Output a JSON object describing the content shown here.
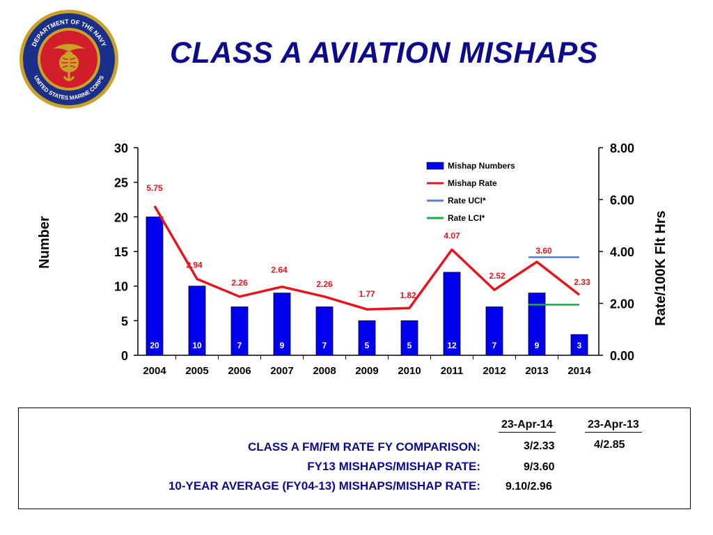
{
  "page": {
    "title": "CLASS A AVIATION MISHAPS",
    "seal_text": "DEPARTMENT OF THE NAVY · UNITED STATES MARINE CORPS"
  },
  "chart_data": {
    "type": "bar",
    "categories": [
      "2004",
      "2005",
      "2006",
      "2007",
      "2008",
      "2009",
      "2010",
      "2011",
      "2012",
      "2013",
      "2014"
    ],
    "ylabel": "Number",
    "y2label": "Rate/100K Flt Hrs",
    "ylim": [
      0,
      30
    ],
    "y2lim": [
      0,
      8
    ],
    "yticks": [
      "0",
      "5",
      "10",
      "15",
      "20",
      "25",
      "30"
    ],
    "y2ticks": [
      "0.00",
      "2.00",
      "4.00",
      "6.00",
      "8.00"
    ],
    "legend_position": "top-right",
    "series": [
      {
        "name": "Mishap Numbers",
        "type": "bar",
        "axis": "left",
        "color": "#0000ee",
        "values": [
          20,
          10,
          7,
          9,
          7,
          5,
          5,
          12,
          7,
          9,
          3
        ],
        "labels": [
          "20",
          "10",
          "7",
          "9",
          "7",
          "5",
          "5",
          "12",
          "7",
          "9",
          "3"
        ]
      },
      {
        "name": "Mishap Rate",
        "type": "line",
        "axis": "right",
        "color": "#e8141c",
        "values": [
          5.75,
          2.94,
          2.26,
          2.64,
          2.26,
          1.77,
          1.82,
          4.07,
          2.52,
          3.6,
          2.33
        ],
        "labels": [
          "5.75",
          "2.94",
          "2.26",
          "2.64",
          "2.26",
          "1.77",
          "1.82",
          "4.07",
          "2.52",
          "3.60",
          "2.33"
        ]
      },
      {
        "name": "Rate UCI*",
        "type": "line",
        "axis": "right",
        "color": "#5b7fc0",
        "segment": {
          "x_from": "2013",
          "x_to": "2014",
          "value": 3.78
        }
      },
      {
        "name": "Rate LCI*",
        "type": "line",
        "axis": "right",
        "color": "#1faa4a",
        "segment": {
          "x_from": "2013",
          "x_to": "2014",
          "value": 1.95
        }
      }
    ]
  },
  "comparison": {
    "col_headers": [
      "23-Apr-14",
      "23-Apr-13"
    ],
    "rows": [
      {
        "label": "CLASS A FM/FM RATE FY COMPARISON:",
        "v1": "3/2.33",
        "v2": "4/2.85"
      },
      {
        "label": "FY13 MISHAPS/MISHAP RATE:",
        "v1": "9/3.60",
        "v2": ""
      },
      {
        "label": "10-YEAR AVERAGE (FY04-13) MISHAPS/MISHAP RATE:",
        "v1": "9.10/2.96",
        "v2": ""
      }
    ]
  }
}
